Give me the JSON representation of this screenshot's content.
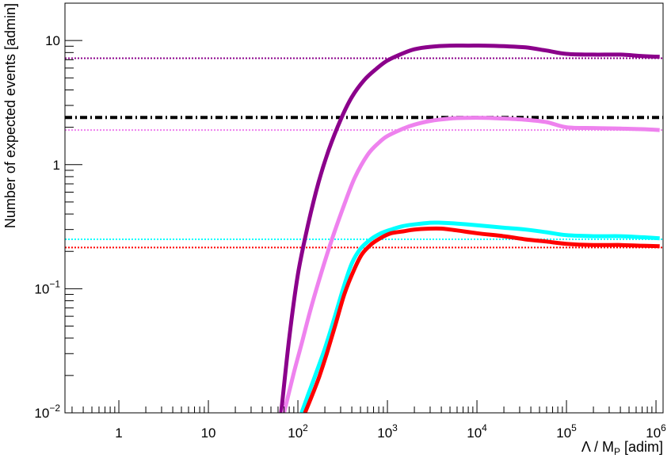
{
  "chart_data": {
    "type": "line",
    "title": "",
    "xlabel": "Λ / M",
    "xlabel_sub": "P",
    "xlabel_unit": "[adim]",
    "ylabel": "Number of expected events [admin]",
    "x_scale": "log",
    "y_scale": "log",
    "xlim": [
      0.25,
      1200000
    ],
    "ylim": [
      0.01,
      20
    ],
    "grid": false,
    "legend": "none",
    "x_ticks": [
      {
        "value": 1,
        "base": "1",
        "exp": ""
      },
      {
        "value": 10,
        "base": "10",
        "exp": ""
      },
      {
        "value": 100,
        "base": "10",
        "exp": "2"
      },
      {
        "value": 1000,
        "base": "10",
        "exp": "3"
      },
      {
        "value": 10000,
        "base": "10",
        "exp": "4"
      },
      {
        "value": 100000,
        "base": "10",
        "exp": "5"
      },
      {
        "value": 1000000,
        "base": "10",
        "exp": "6"
      }
    ],
    "y_ticks": [
      {
        "value": 0.01,
        "base": "10",
        "exp": "−2"
      },
      {
        "value": 0.1,
        "base": "10",
        "exp": "−1"
      },
      {
        "value": 1,
        "base": "1",
        "exp": ""
      },
      {
        "value": 10,
        "base": "10",
        "exp": ""
      }
    ],
    "series": [
      {
        "color": "#8b008b",
        "style": "solid",
        "x": [
          65,
          80,
          100,
          130,
          170,
          220,
          300,
          400,
          550,
          750,
          1000,
          1500,
          2000,
          3000,
          5000,
          8000,
          12000,
          20000,
          35000,
          60000,
          100000,
          200000,
          400000,
          700000,
          1100000
        ],
        "y": [
          0.01,
          0.04,
          0.13,
          0.33,
          0.72,
          1.3,
          2.3,
          3.5,
          4.8,
          5.9,
          6.9,
          7.9,
          8.5,
          8.9,
          9.1,
          9.1,
          9.1,
          9.0,
          8.8,
          8.3,
          7.8,
          7.7,
          7.7,
          7.5,
          7.4
        ]
      },
      {
        "color": "#ee82ee",
        "style": "solid",
        "x": [
          70,
          90,
          110,
          140,
          180,
          240,
          320,
          430,
          600,
          800,
          1000,
          1500,
          2000,
          3000,
          5000,
          8000,
          12000,
          20000,
          35000,
          60000,
          100000,
          200000,
          400000,
          700000,
          1100000
        ],
        "y": [
          0.01,
          0.021,
          0.036,
          0.07,
          0.13,
          0.25,
          0.45,
          0.78,
          1.2,
          1.5,
          1.7,
          1.95,
          2.1,
          2.25,
          2.35,
          2.38,
          2.38,
          2.35,
          2.3,
          2.2,
          2.0,
          1.97,
          1.95,
          1.93,
          1.9
        ]
      },
      {
        "color": "#00ffff",
        "style": "solid",
        "x": [
          110,
          130,
          160,
          200,
          250,
          320,
          400,
          500,
          650,
          850,
          1100,
          1500,
          2000,
          3000,
          4000,
          6000,
          10000,
          20000,
          35000,
          60000,
          100000,
          200000,
          400000,
          700000,
          1100000
        ],
        "y": [
          0.01,
          0.014,
          0.021,
          0.033,
          0.055,
          0.1,
          0.16,
          0.21,
          0.25,
          0.28,
          0.3,
          0.32,
          0.33,
          0.34,
          0.34,
          0.335,
          0.325,
          0.31,
          0.3,
          0.285,
          0.27,
          0.265,
          0.265,
          0.26,
          0.255
        ]
      },
      {
        "color": "#ff0000",
        "style": "solid",
        "x": [
          120,
          145,
          175,
          210,
          260,
          330,
          420,
          520,
          670,
          870,
          1100,
          1500,
          2000,
          3000,
          4000,
          6000,
          10000,
          20000,
          35000,
          60000,
          100000,
          200000,
          400000,
          700000,
          1100000
        ],
        "y": [
          0.01,
          0.014,
          0.02,
          0.03,
          0.05,
          0.09,
          0.14,
          0.19,
          0.23,
          0.26,
          0.28,
          0.29,
          0.3,
          0.305,
          0.305,
          0.295,
          0.28,
          0.265,
          0.25,
          0.24,
          0.23,
          0.225,
          0.225,
          0.222,
          0.22
        ]
      }
    ],
    "reference_lines": [
      {
        "y": 7.2,
        "color": "#8b008b",
        "style": "dotted"
      },
      {
        "y": 2.4,
        "color": "#000000",
        "style": "dashdot"
      },
      {
        "y": 1.9,
        "color": "#ee82ee",
        "style": "dotted"
      },
      {
        "y": 0.25,
        "color": "#00ffff",
        "style": "dotted"
      },
      {
        "y": 0.215,
        "color": "#ff0000",
        "style": "dotted"
      }
    ]
  }
}
